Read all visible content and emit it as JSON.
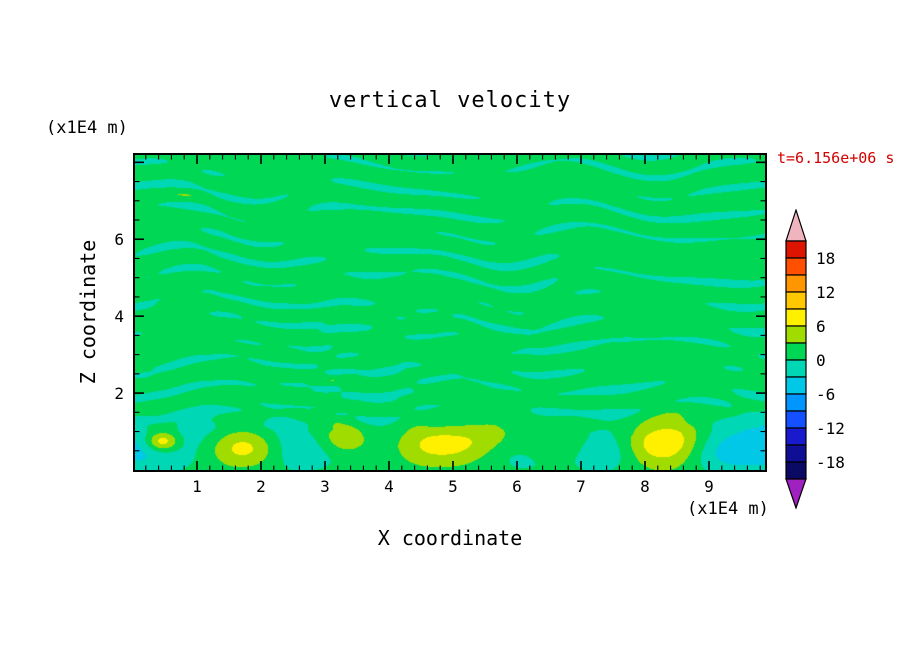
{
  "chart_data": {
    "type": "filled_contour",
    "title": "vertical velocity",
    "time_label": "t=6.156e+06 s",
    "axes": {
      "x": {
        "label": "X coordinate",
        "unit": "(x1E4 m)",
        "range": [
          0,
          9.85
        ],
        "major_ticks": [
          1,
          2,
          3,
          4,
          5,
          6,
          7,
          8,
          9
        ],
        "minor_tick_step": 0.2
      },
      "z": {
        "label": "Z coordinate",
        "unit": "(x1E4 m)",
        "range": [
          0,
          8.19
        ],
        "major_ticks": [
          2,
          4,
          6
        ],
        "minor_tick_step": 0.5
      }
    },
    "colorbar": {
      "tick_labels": [
        "18",
        "12",
        "6",
        "0",
        "-6",
        "-12",
        "-18"
      ],
      "level_max": 21,
      "level_min": -21,
      "contour_interval": 3,
      "band_colors_high_to_low": [
        "#dc1400",
        "#ff5000",
        "#ff9600",
        "#ffc800",
        "#fff000",
        "#a0dc00",
        "#00d755",
        "#00d7b4",
        "#00c8e6",
        "#0096ff",
        "#1450ff",
        "#1919cd",
        "#0f0f96",
        "#0a0a64"
      ],
      "over_color": "#f0b4be",
      "under_color": "#a020c0",
      "outline_color": "#000000"
    },
    "field": {
      "description": "Near-zero vertical velocity field: green (0 to +3) background filled with thin horizontal turquoise streaks (-3 to 0) above z~1.5; turbulent bottom layer below z~1.5 with turquoise downdraft patches and yellow-green/yellow updraft plumes.",
      "background_level": 1.4,
      "bottom_blobs": [
        {
          "x": 0.15,
          "z": 0.55,
          "a": -5.5,
          "sx": 0.45,
          "sz": 0.45
        },
        {
          "x": 0.45,
          "z": 0.75,
          "a": 9.0,
          "sx": 0.18,
          "sz": 0.18
        },
        {
          "x": 1.75,
          "z": 0.6,
          "a": 7.5,
          "sx": 0.45,
          "sz": 0.35
        },
        {
          "x": 2.75,
          "z": 0.55,
          "a": -4.0,
          "sx": 0.5,
          "sz": 0.4
        },
        {
          "x": 3.35,
          "z": 0.8,
          "a": 5.5,
          "sx": 0.3,
          "sz": 0.3
        },
        {
          "x": 4.9,
          "z": 0.7,
          "a": 9.0,
          "sx": 0.55,
          "sz": 0.4
        },
        {
          "x": 5.9,
          "z": 0.45,
          "a": -3.5,
          "sx": 0.45,
          "sz": 0.35
        },
        {
          "x": 6.55,
          "z": 0.65,
          "a": 4.5,
          "sx": 0.4,
          "sz": 0.3
        },
        {
          "x": 7.3,
          "z": 0.5,
          "a": -4.5,
          "sx": 0.4,
          "sz": 0.35
        },
        {
          "x": 8.15,
          "z": 0.7,
          "a": 7.8,
          "sx": 0.6,
          "sz": 0.42
        },
        {
          "x": 9.1,
          "z": 0.45,
          "a": -3.5,
          "sx": 0.4,
          "sz": 0.35
        },
        {
          "x": 9.75,
          "z": 0.6,
          "a": -5.0,
          "sx": 0.45,
          "sz": 0.5
        }
      ]
    }
  }
}
